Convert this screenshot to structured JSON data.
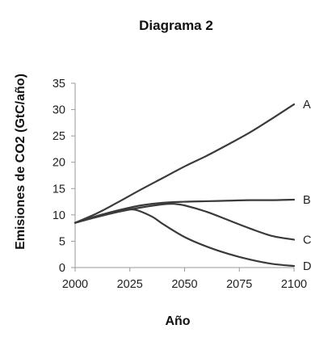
{
  "chart_data": {
    "type": "line",
    "title": "Diagrama 2",
    "xlabel": "Año",
    "ylabel": "Emisiones de CO2 (GtC/año)",
    "xlim": [
      2000,
      2100
    ],
    "ylim": [
      0,
      35
    ],
    "x_ticks": [
      2000,
      2025,
      2050,
      2075,
      2100
    ],
    "y_ticks": [
      0,
      5,
      10,
      15,
      20,
      25,
      30,
      35
    ],
    "grid": false,
    "legend": "end-of-line labels",
    "series": [
      {
        "name": "A",
        "x": [
          2000,
          2010,
          2020,
          2030,
          2040,
          2050,
          2060,
          2070,
          2080,
          2090,
          2100
        ],
        "values": [
          8.5,
          10.3,
          12.5,
          14.8,
          17.0,
          19.2,
          21.2,
          23.4,
          25.7,
          28.3,
          31.0
        ]
      },
      {
        "name": "B",
        "x": [
          2000,
          2010,
          2020,
          2030,
          2040,
          2050,
          2060,
          2070,
          2080,
          2090,
          2100
        ],
        "values": [
          8.5,
          9.8,
          10.9,
          11.8,
          12.3,
          12.5,
          12.6,
          12.7,
          12.8,
          12.8,
          12.9
        ]
      },
      {
        "name": "C",
        "x": [
          2000,
          2010,
          2020,
          2030,
          2040,
          2045,
          2050,
          2060,
          2070,
          2080,
          2090,
          2100
        ],
        "values": [
          8.5,
          9.6,
          10.6,
          11.4,
          12.0,
          12.1,
          11.8,
          10.6,
          9.0,
          7.4,
          6.0,
          5.3
        ]
      },
      {
        "name": "D",
        "x": [
          2000,
          2010,
          2020,
          2027,
          2035,
          2040,
          2050,
          2060,
          2070,
          2080,
          2090,
          2100
        ],
        "values": [
          8.5,
          9.7,
          10.7,
          11.0,
          9.7,
          8.3,
          5.8,
          4.0,
          2.6,
          1.5,
          0.7,
          0.3
        ]
      }
    ]
  }
}
